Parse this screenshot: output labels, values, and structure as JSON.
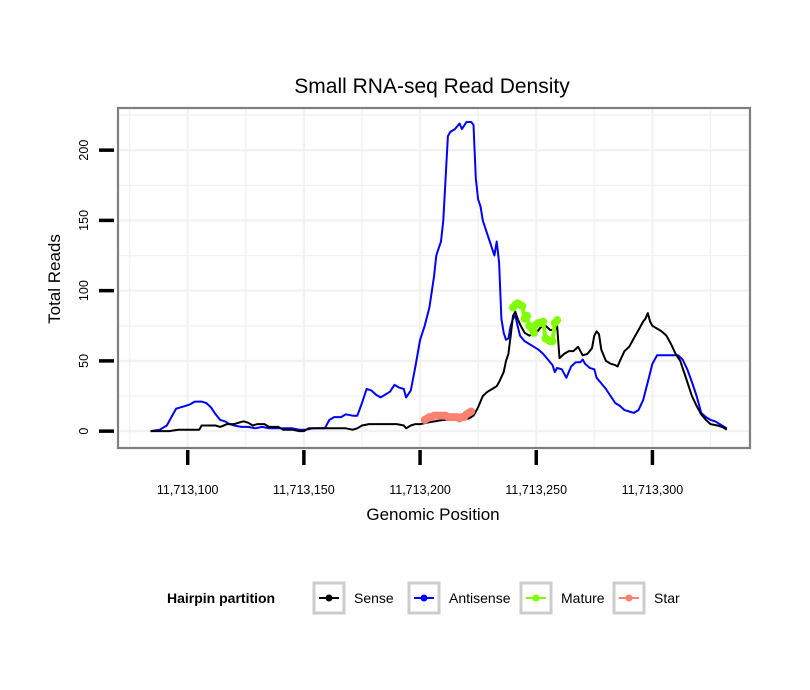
{
  "chart_data": {
    "type": "line",
    "title": "Small RNA-seq Read Density",
    "xlabel": "Genomic Position",
    "ylabel": "Total Reads",
    "xlim": [
      11713070,
      11713342
    ],
    "ylim": [
      -12,
      230
    ],
    "x_ticks": [
      11713100,
      11713150,
      11713200,
      11713250,
      11713300
    ],
    "x_tick_labels": [
      "11,713,100",
      "11,713,150",
      "11,713,200",
      "11,713,250",
      "11,713,300"
    ],
    "y_ticks": [
      0,
      50,
      100,
      150,
      200
    ],
    "y_tick_labels": [
      "0",
      "50",
      "100",
      "150",
      "200"
    ],
    "grid": true,
    "legend": {
      "title": "Hairpin partition",
      "placement": "bottom",
      "entries": [
        {
          "name": "Sense",
          "color": "#000000"
        },
        {
          "name": "Antisense",
          "color": "#0000ff"
        },
        {
          "name": "Mature",
          "color": "#7fff00"
        },
        {
          "name": "Star",
          "color": "#fa8072"
        }
      ]
    },
    "series": [
      {
        "name": "Antisense",
        "color": "#0000ff",
        "style": "line",
        "points": [
          [
            11713084,
            0
          ],
          [
            11713088,
            1
          ],
          [
            11713091,
            4
          ],
          [
            11713093,
            10
          ],
          [
            11713095,
            16
          ],
          [
            11713097,
            17
          ],
          [
            11713099,
            18
          ],
          [
            11713101,
            19
          ],
          [
            11713103,
            21
          ],
          [
            11713106,
            21
          ],
          [
            11713108,
            20
          ],
          [
            11713110,
            17
          ],
          [
            11713112,
            12
          ],
          [
            11713114,
            8
          ],
          [
            11713116,
            7
          ],
          [
            11713118,
            5
          ],
          [
            11713120,
            4
          ],
          [
            11713123,
            3
          ],
          [
            11713126,
            3
          ],
          [
            11713129,
            2
          ],
          [
            11713132,
            3
          ],
          [
            11713135,
            2
          ],
          [
            11713139,
            2
          ],
          [
            11713142,
            2
          ],
          [
            11713145,
            2
          ],
          [
            11713148,
            1
          ],
          [
            11713151,
            1
          ],
          [
            11713154,
            2
          ],
          [
            11713157,
            2
          ],
          [
            11713159,
            2
          ],
          [
            11713161,
            8
          ],
          [
            11713163,
            10
          ],
          [
            11713166,
            10
          ],
          [
            11713168,
            12
          ],
          [
            11713171,
            11
          ],
          [
            11713173,
            11
          ],
          [
            11713175,
            20
          ],
          [
            11713177,
            30
          ],
          [
            11713179,
            29
          ],
          [
            11713181,
            26
          ],
          [
            11713183,
            24
          ],
          [
            11713185,
            26
          ],
          [
            11713187,
            28
          ],
          [
            11713189,
            33
          ],
          [
            11713191,
            31
          ],
          [
            11713193,
            30
          ],
          [
            11713194,
            24
          ],
          [
            11713196,
            29
          ],
          [
            11713198,
            46
          ],
          [
            11713200,
            65
          ],
          [
            11713202,
            75
          ],
          [
            11713204,
            88
          ],
          [
            11713206,
            110
          ],
          [
            11713207,
            125
          ],
          [
            11713208,
            130
          ],
          [
            11713209,
            135
          ],
          [
            11713210,
            150
          ],
          [
            11713211,
            180
          ],
          [
            11713212,
            210
          ],
          [
            11713213,
            213
          ],
          [
            11713215,
            215
          ],
          [
            11713217,
            219
          ],
          [
            11713218,
            215
          ],
          [
            11713220,
            220
          ],
          [
            11713222,
            220
          ],
          [
            11713223,
            218
          ],
          [
            11713224,
            180
          ],
          [
            11713225,
            165
          ],
          [
            11713226,
            160
          ],
          [
            11713227,
            150
          ],
          [
            11713228,
            145
          ],
          [
            11713229,
            140
          ],
          [
            11713230,
            135
          ],
          [
            11713231,
            130
          ],
          [
            11713232,
            125
          ],
          [
            11713233,
            135
          ],
          [
            11713234,
            120
          ],
          [
            11713235,
            80
          ],
          [
            11713236,
            70
          ],
          [
            11713237,
            65
          ],
          [
            11713238,
            66
          ],
          [
            11713239,
            75
          ],
          [
            11713240,
            80
          ],
          [
            11713241,
            82
          ],
          [
            11713242,
            75
          ],
          [
            11713243,
            68
          ],
          [
            11713245,
            64
          ],
          [
            11713247,
            62
          ],
          [
            11713249,
            60
          ],
          [
            11713251,
            58
          ],
          [
            11713253,
            55
          ],
          [
            11713255,
            51
          ],
          [
            11713257,
            47
          ],
          [
            11713258,
            42
          ],
          [
            11713259,
            45
          ],
          [
            11713261,
            44
          ],
          [
            11713263,
            38
          ],
          [
            11713265,
            46
          ],
          [
            11713267,
            49
          ],
          [
            11713269,
            49
          ],
          [
            11713270,
            51
          ],
          [
            11713271,
            48
          ],
          [
            11713273,
            45
          ],
          [
            11713275,
            44
          ],
          [
            11713276,
            38
          ],
          [
            11713278,
            34
          ],
          [
            11713280,
            30
          ],
          [
            11713282,
            25
          ],
          [
            11713284,
            20
          ],
          [
            11713286,
            18
          ],
          [
            11713288,
            15
          ],
          [
            11713290,
            14
          ],
          [
            11713292,
            13
          ],
          [
            11713294,
            15
          ],
          [
            11713296,
            22
          ],
          [
            11713298,
            35
          ],
          [
            11713300,
            48
          ],
          [
            11713302,
            54
          ],
          [
            11713305,
            54
          ],
          [
            11713308,
            54
          ],
          [
            11713311,
            54
          ],
          [
            11713313,
            51
          ],
          [
            11713315,
            44
          ],
          [
            11713317,
            35
          ],
          [
            11713319,
            25
          ],
          [
            11713321,
            13
          ],
          [
            11713323,
            10
          ],
          [
            11713325,
            8
          ],
          [
            11713327,
            7
          ],
          [
            11713330,
            4
          ],
          [
            11713332,
            2
          ]
        ]
      },
      {
        "name": "Sense",
        "color": "#000000",
        "style": "line",
        "points": [
          [
            11713084,
            0
          ],
          [
            11713092,
            0
          ],
          [
            11713096,
            1
          ],
          [
            11713105,
            1
          ],
          [
            11713106,
            4
          ],
          [
            11713112,
            4
          ],
          [
            11713114,
            3
          ],
          [
            11713117,
            5
          ],
          [
            11713120,
            5
          ],
          [
            11713124,
            7
          ],
          [
            11713126,
            6
          ],
          [
            11713128,
            4
          ],
          [
            11713130,
            5
          ],
          [
            11713133,
            5
          ],
          [
            11713135,
            3
          ],
          [
            11713137,
            3
          ],
          [
            11713139,
            3
          ],
          [
            11713141,
            1
          ],
          [
            11713145,
            1
          ],
          [
            11713148,
            0
          ],
          [
            11713150,
            0
          ],
          [
            11713152,
            2
          ],
          [
            11713157,
            2
          ],
          [
            11713163,
            2
          ],
          [
            11713168,
            2
          ],
          [
            11713171,
            1
          ],
          [
            11713173,
            2
          ],
          [
            11713175,
            4
          ],
          [
            11713178,
            5
          ],
          [
            11713183,
            5
          ],
          [
            11713190,
            5
          ],
          [
            11713193,
            4
          ],
          [
            11713194,
            2
          ],
          [
            11713196,
            4
          ],
          [
            11713198,
            5
          ],
          [
            11713200,
            5
          ],
          [
            11713203,
            6
          ],
          [
            11713210,
            8
          ],
          [
            11713216,
            8
          ],
          [
            11713221,
            9
          ],
          [
            11713223,
            11
          ],
          [
            11713225,
            17
          ],
          [
            11713227,
            25
          ],
          [
            11713229,
            28
          ],
          [
            11713231,
            30
          ],
          [
            11713233,
            32
          ],
          [
            11713234,
            35
          ],
          [
            11713236,
            42
          ],
          [
            11713237,
            50
          ],
          [
            11713238,
            55
          ],
          [
            11713239,
            68
          ],
          [
            11713240,
            82
          ],
          [
            11713241,
            85
          ],
          [
            11713242,
            80
          ],
          [
            11713243,
            76
          ],
          [
            11713245,
            70
          ],
          [
            11713247,
            68
          ],
          [
            11713250,
            70
          ],
          [
            11713252,
            74
          ],
          [
            11713254,
            75
          ],
          [
            11713256,
            72
          ],
          [
            11713258,
            72
          ],
          [
            11713259,
            75
          ],
          [
            11713260,
            52
          ],
          [
            11713262,
            55
          ],
          [
            11713264,
            57
          ],
          [
            11713266,
            57
          ],
          [
            11713268,
            60
          ],
          [
            11713270,
            54
          ],
          [
            11713272,
            55
          ],
          [
            11713274,
            59
          ],
          [
            11713275,
            68
          ],
          [
            11713276,
            71
          ],
          [
            11713277,
            69
          ],
          [
            11713278,
            58
          ],
          [
            11713280,
            50
          ],
          [
            11713282,
            48
          ],
          [
            11713284,
            47
          ],
          [
            11713285,
            46
          ],
          [
            11713286,
            50
          ],
          [
            11713288,
            57
          ],
          [
            11713290,
            60
          ],
          [
            11713292,
            66
          ],
          [
            11713294,
            72
          ],
          [
            11713296,
            78
          ],
          [
            11713297,
            80
          ],
          [
            11713298,
            84
          ],
          [
            11713299,
            78
          ],
          [
            11713300,
            75
          ],
          [
            11713302,
            73
          ],
          [
            11713304,
            71
          ],
          [
            11713306,
            68
          ],
          [
            11713308,
            62
          ],
          [
            11713310,
            55
          ],
          [
            11713312,
            50
          ],
          [
            11713313,
            45
          ],
          [
            11713315,
            35
          ],
          [
            11713317,
            25
          ],
          [
            11713319,
            18
          ],
          [
            11713321,
            12
          ],
          [
            11713323,
            8
          ],
          [
            11713325,
            5
          ],
          [
            11713328,
            4
          ],
          [
            11713330,
            3
          ],
          [
            11713332,
            1
          ]
        ]
      },
      {
        "name": "Star",
        "color": "#fa8072",
        "style": "points",
        "points": [
          [
            11713202,
            8
          ],
          [
            11713203,
            9
          ],
          [
            11713204,
            10
          ],
          [
            11713205,
            10
          ],
          [
            11713206,
            11
          ],
          [
            11713207,
            11
          ],
          [
            11713208,
            11
          ],
          [
            11713209,
            11
          ],
          [
            11713210,
            11
          ],
          [
            11713211,
            11
          ],
          [
            11713212,
            10
          ],
          [
            11713213,
            10
          ],
          [
            11713214,
            10
          ],
          [
            11713215,
            10
          ],
          [
            11713216,
            10
          ],
          [
            11713217,
            9
          ],
          [
            11713218,
            10
          ],
          [
            11713219,
            10
          ],
          [
            11713220,
            12
          ],
          [
            11713221,
            13
          ],
          [
            11713222,
            14
          ]
        ]
      },
      {
        "name": "Mature",
        "color": "#7fff00",
        "style": "points",
        "points": [
          [
            11713240,
            88
          ],
          [
            11713241,
            90
          ],
          [
            11713242,
            91
          ],
          [
            11713243,
            90
          ],
          [
            11713244,
            89
          ],
          [
            11713245,
            80
          ],
          [
            11713246,
            82
          ],
          [
            11713247,
            75
          ],
          [
            11713248,
            73
          ],
          [
            11713249,
            70
          ],
          [
            11713250,
            76
          ],
          [
            11713251,
            77
          ],
          [
            11713252,
            77
          ],
          [
            11713253,
            78
          ],
          [
            11713254,
            66
          ],
          [
            11713255,
            65
          ],
          [
            11713256,
            64
          ],
          [
            11713257,
            64
          ],
          [
            11713258,
            77
          ],
          [
            11713259,
            79
          ]
        ]
      }
    ]
  }
}
